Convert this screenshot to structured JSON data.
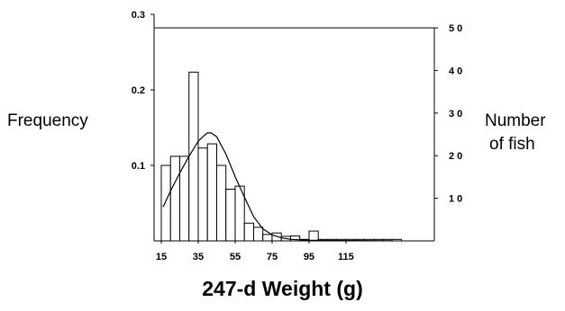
{
  "chart_data": {
    "type": "bar",
    "title": "",
    "xlabel": "247-d Weight (g)",
    "ylabel_left": "Frequency",
    "ylabel_right_line1": "Number",
    "ylabel_right_line2": "of fish",
    "xlim": [
      15,
      157
    ],
    "ylim_left": [
      0,
      0.3
    ],
    "ylim_right": [
      0,
      50
    ],
    "x_ticks": [
      {
        "value": 15,
        "label": "15"
      },
      {
        "value": 35,
        "label": "35"
      },
      {
        "value": 55,
        "label": "55"
      },
      {
        "value": 75,
        "label": "75"
      },
      {
        "value": 95,
        "label": "95"
      },
      {
        "value": 115,
        "label": "115"
      }
    ],
    "y_left_ticks": [
      {
        "value": 0.1,
        "label": "0.1"
      },
      {
        "value": 0.2,
        "label": "0.2"
      },
      {
        "value": 0.3,
        "label": "0.3"
      }
    ],
    "y_right_ticks": [
      {
        "value": 10,
        "label": "1 0"
      },
      {
        "value": 20,
        "label": "2 0"
      },
      {
        "value": 30,
        "label": "3 0"
      },
      {
        "value": 40,
        "label": "4 0"
      },
      {
        "value": 50,
        "label": "5 0"
      }
    ],
    "reference_line_count": 50,
    "bin_width": 5,
    "bins": [
      {
        "x": 17.5,
        "frequency": 0.1
      },
      {
        "x": 22.5,
        "frequency": 0.112
      },
      {
        "x": 27.5,
        "frequency": 0.112
      },
      {
        "x": 32.5,
        "frequency": 0.2235
      },
      {
        "x": 37.5,
        "frequency": 0.123
      },
      {
        "x": 42.5,
        "frequency": 0.1285
      },
      {
        "x": 47.5,
        "frequency": 0.1
      },
      {
        "x": 52.5,
        "frequency": 0.0685
      },
      {
        "x": 57.5,
        "frequency": 0.0725
      },
      {
        "x": 62.5,
        "frequency": 0.0235
      },
      {
        "x": 67.5,
        "frequency": 0.018
      },
      {
        "x": 72.5,
        "frequency": 0.0085
      },
      {
        "x": 77.5,
        "frequency": 0.0105
      },
      {
        "x": 82.5,
        "frequency": 0.006
      },
      {
        "x": 87.5,
        "frequency": 0.0065
      },
      {
        "x": 92.5,
        "frequency": 0.002
      },
      {
        "x": 97.5,
        "frequency": 0.013
      },
      {
        "x": 102.5,
        "frequency": 0.002
      },
      {
        "x": 107.5,
        "frequency": 0.002
      },
      {
        "x": 112.5,
        "frequency": 0.002
      },
      {
        "x": 117.5,
        "frequency": 0.002
      },
      {
        "x": 122.5,
        "frequency": 0.002
      },
      {
        "x": 127.5,
        "frequency": 0.002
      },
      {
        "x": 132.5,
        "frequency": 0.002
      },
      {
        "x": 137.5,
        "frequency": 0.002
      },
      {
        "x": 142.5,
        "frequency": 0.002
      }
    ],
    "fit_curve": {
      "name": "",
      "points": [
        [
          16,
          0.045
        ],
        [
          20,
          0.066
        ],
        [
          25,
          0.09
        ],
        [
          30,
          0.112
        ],
        [
          35,
          0.132
        ],
        [
          38,
          0.139
        ],
        [
          40,
          0.143
        ],
        [
          42,
          0.143
        ],
        [
          45,
          0.138
        ],
        [
          50,
          0.115
        ],
        [
          55,
          0.085
        ],
        [
          60,
          0.058
        ],
        [
          65,
          0.032
        ],
        [
          70,
          0.016
        ],
        [
          75,
          0.008
        ],
        [
          80,
          0.004
        ],
        [
          85,
          0.002
        ],
        [
          95,
          0.001
        ],
        [
          110,
          0.0005
        ],
        [
          140,
          0.0002
        ]
      ]
    }
  }
}
